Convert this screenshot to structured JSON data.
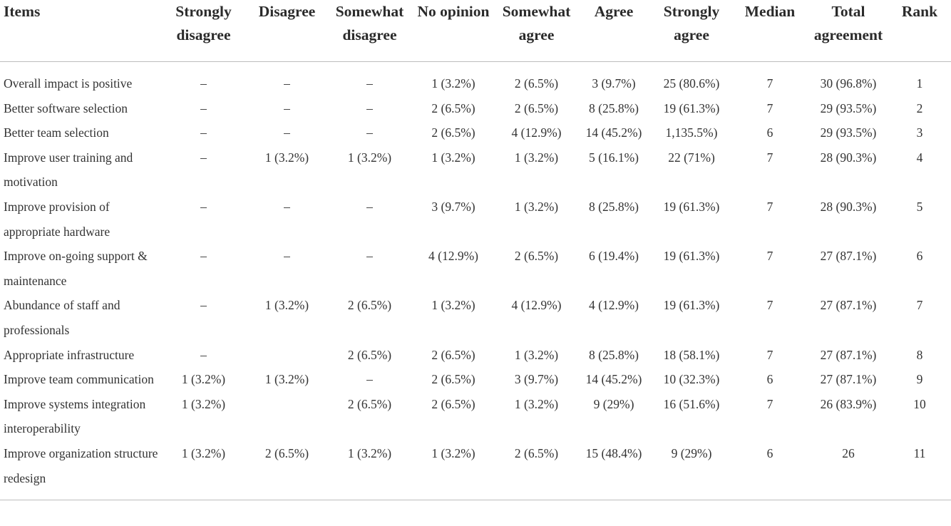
{
  "columns": [
    "Items",
    "Strongly disagree",
    "Disagree",
    "Somewhat disagree",
    "No opinion",
    "Somewhat agree",
    "Agree",
    "Strongly agree",
    "Median",
    "Total agreement",
    "Rank"
  ],
  "rows": [
    [
      "Overall impact is positive",
      "–",
      "–",
      "–",
      "1 (3.2%)",
      "2 (6.5%)",
      "3 (9.7%)",
      "25 (80.6%)",
      "7",
      "30 (96.8%)",
      "1"
    ],
    [
      "Better software selection",
      "–",
      "–",
      "–",
      "2 (6.5%)",
      "2 (6.5%)",
      "8 (25.8%)",
      "19 (61.3%)",
      "7",
      "29 (93.5%)",
      "2"
    ],
    [
      "Better team selection",
      "–",
      "–",
      "–",
      "2 (6.5%)",
      "4 (12.9%)",
      "14 (45.2%)",
      "1,135.5%)",
      "6",
      "29 (93.5%)",
      "3"
    ],
    [
      "Improve user training and motivation",
      "–",
      "1 (3.2%)",
      "1 (3.2%)",
      "1 (3.2%)",
      "1 (3.2%)",
      "5 (16.1%)",
      "22 (71%)",
      "7",
      "28 (90.3%)",
      "4"
    ],
    [
      "Improve provision of appropriate hardware",
      "–",
      "–",
      "–",
      "3 (9.7%)",
      "1 (3.2%)",
      "8 (25.8%)",
      "19 (61.3%)",
      "7",
      "28 (90.3%)",
      "5"
    ],
    [
      "Improve on-going support & maintenance",
      "–",
      "–",
      "–",
      "4 (12.9%)",
      "2 (6.5%)",
      "6 (19.4%)",
      "19 (61.3%)",
      "7",
      "27 (87.1%)",
      "6"
    ],
    [
      "Abundance of staff and professionals",
      "–",
      "1 (3.2%)",
      "2 (6.5%)",
      "1 (3.2%)",
      "4 (12.9%)",
      "4 (12.9%)",
      "19 (61.3%)",
      "7",
      "27 (87.1%)",
      "7"
    ],
    [
      "Appropriate infrastructure",
      "–",
      "",
      "2 (6.5%)",
      "2 (6.5%)",
      "1 (3.2%)",
      "8 (25.8%)",
      "18 (58.1%)",
      "7",
      "27 (87.1%)",
      "8"
    ],
    [
      "Improve team communication",
      "1 (3.2%)",
      "1 (3.2%)",
      "–",
      "2 (6.5%)",
      "3 (9.7%)",
      "14 (45.2%)",
      "10 (32.3%)",
      "6",
      "27 (87.1%)",
      "9"
    ],
    [
      "Improve systems integration interoperability",
      "1 (3.2%)",
      "",
      "2 (6.5%)",
      "2 (6.5%)",
      "1 (3.2%)",
      "9 (29%)",
      "16 (51.6%)",
      "7",
      "26 (83.9%)",
      "10"
    ],
    [
      "Improve organization structure redesign",
      "1 (3.2%)",
      "2 (6.5%)",
      "1 (3.2%)",
      "1 (3.2%)",
      "2 (6.5%)",
      "15 (48.4%)",
      "9 (29%)",
      "6",
      "26",
      "11"
    ]
  ]
}
